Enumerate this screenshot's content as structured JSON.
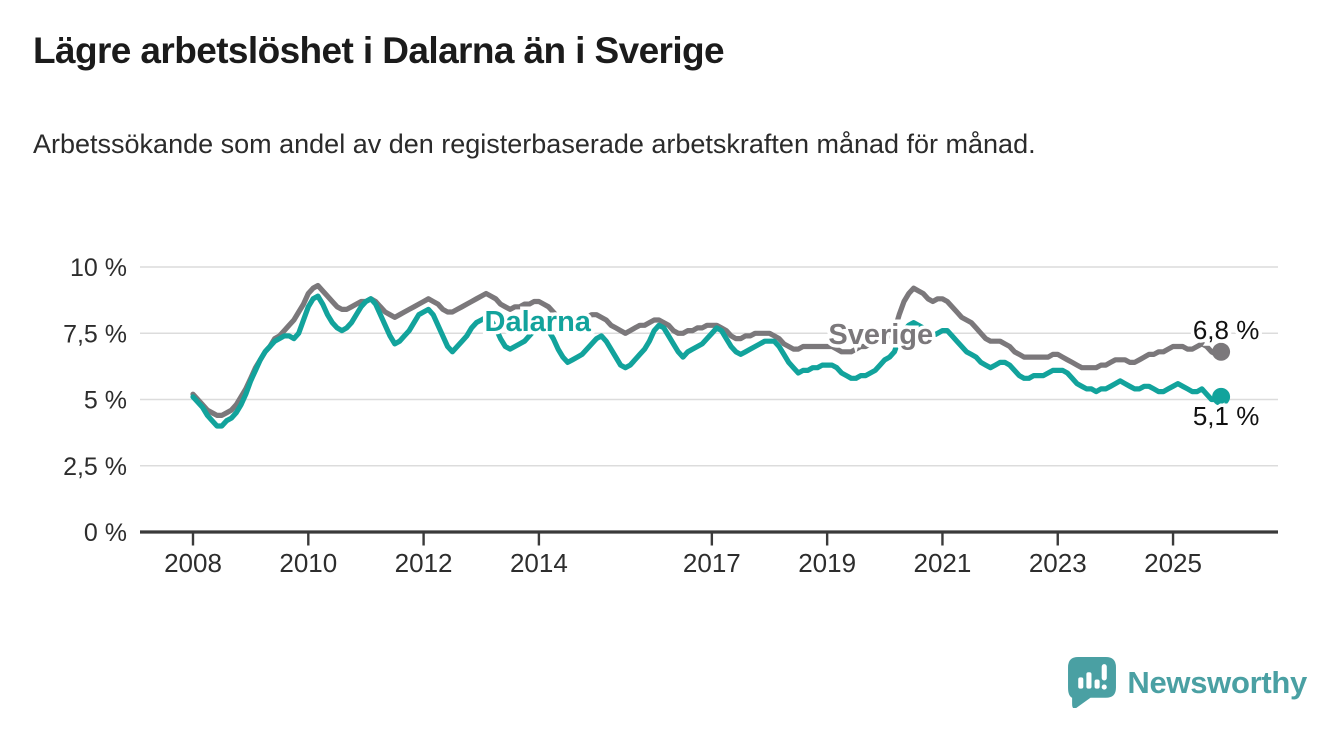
{
  "header": {
    "title": "Lägre arbetslöshet i Dalarna än i Sverige",
    "subtitle": "Arbetssökande som andel av den registerbaserade arbetskraften månad för månad."
  },
  "chart_data": {
    "type": "line",
    "title": "Lägre arbetslöshet i Dalarna än i Sverige",
    "subtitle": "Arbetssökande som andel av den registerbaserade arbetskraften månad för månad.",
    "unit": "%",
    "grid": true,
    "x_axis": {
      "frequency": "monthly",
      "start_year": 2008,
      "start_month": 1,
      "end_year": 2025,
      "end_month": 11,
      "tick_years": [
        2008,
        2010,
        2012,
        2014,
        2017,
        2019,
        2021,
        2023,
        2025
      ]
    },
    "y_axis": {
      "range": [
        0,
        10
      ],
      "ticks": [
        {
          "value": 0,
          "label": "0 %"
        },
        {
          "value": 2.5,
          "label": "2,5 %"
        },
        {
          "value": 5,
          "label": "5 %"
        },
        {
          "value": 7.5,
          "label": "7,5 %"
        },
        {
          "value": 10,
          "label": "10 %"
        }
      ]
    },
    "series": [
      {
        "name": "Sverige",
        "color": "#7b787b",
        "end_value": 6.8,
        "end_label": "6,8 %",
        "end_label_position": "above",
        "label_at": {
          "year": 2019.93,
          "value": 7.47
        },
        "values": [
          5.2,
          5.0,
          4.8,
          4.6,
          4.5,
          4.4,
          4.4,
          4.5,
          4.6,
          4.8,
          5.1,
          5.4,
          5.8,
          6.2,
          6.5,
          6.8,
          7.0,
          7.3,
          7.4,
          7.6,
          7.8,
          8.0,
          8.3,
          8.6,
          9.0,
          9.2,
          9.3,
          9.1,
          8.9,
          8.7,
          8.5,
          8.4,
          8.4,
          8.5,
          8.6,
          8.7,
          8.7,
          8.8,
          8.7,
          8.5,
          8.3,
          8.2,
          8.1,
          8.2,
          8.3,
          8.4,
          8.5,
          8.6,
          8.7,
          8.8,
          8.7,
          8.6,
          8.4,
          8.3,
          8.3,
          8.4,
          8.5,
          8.6,
          8.7,
          8.8,
          8.9,
          9.0,
          8.9,
          8.8,
          8.6,
          8.5,
          8.4,
          8.5,
          8.5,
          8.6,
          8.6,
          8.7,
          8.7,
          8.6,
          8.5,
          8.3,
          8.1,
          8.0,
          7.9,
          8.0,
          8.0,
          8.1,
          8.1,
          8.2,
          8.2,
          8.1,
          8.0,
          7.8,
          7.7,
          7.6,
          7.5,
          7.6,
          7.7,
          7.8,
          7.8,
          7.9,
          8.0,
          8.0,
          7.9,
          7.8,
          7.6,
          7.5,
          7.5,
          7.6,
          7.6,
          7.7,
          7.7,
          7.8,
          7.8,
          7.8,
          7.7,
          7.6,
          7.4,
          7.3,
          7.3,
          7.4,
          7.4,
          7.5,
          7.5,
          7.5,
          7.5,
          7.4,
          7.3,
          7.1,
          7.0,
          6.9,
          6.9,
          7.0,
          7.0,
          7.0,
          7.0,
          7.0,
          7.0,
          7.0,
          6.9,
          6.8,
          6.8,
          6.8,
          6.9,
          7.0,
          7.0,
          7.1,
          7.1,
          7.2,
          7.4,
          7.4,
          7.6,
          8.2,
          8.7,
          9.0,
          9.2,
          9.1,
          9.0,
          8.8,
          8.7,
          8.8,
          8.8,
          8.7,
          8.5,
          8.3,
          8.1,
          8.0,
          7.9,
          7.7,
          7.5,
          7.3,
          7.2,
          7.2,
          7.2,
          7.1,
          7.0,
          6.8,
          6.7,
          6.6,
          6.6,
          6.6,
          6.6,
          6.6,
          6.6,
          6.7,
          6.7,
          6.6,
          6.5,
          6.4,
          6.3,
          6.2,
          6.2,
          6.2,
          6.2,
          6.3,
          6.3,
          6.4,
          6.5,
          6.5,
          6.5,
          6.4,
          6.4,
          6.5,
          6.6,
          6.7,
          6.7,
          6.8,
          6.8,
          6.9,
          7.0,
          7.0,
          7.0,
          6.9,
          6.9,
          7.0,
          7.1,
          7.0,
          6.8,
          6.7,
          6.8
        ]
      },
      {
        "name": "Dalarna",
        "color": "#12a39c",
        "end_value": 5.1,
        "end_label": "5,1 %",
        "end_label_position": "below",
        "label_at": {
          "year": 2013.98,
          "value": 7.96
        },
        "values": [
          5.1,
          4.9,
          4.7,
          4.4,
          4.2,
          4.0,
          4.0,
          4.2,
          4.3,
          4.5,
          4.8,
          5.2,
          5.7,
          6.1,
          6.5,
          6.8,
          7.0,
          7.2,
          7.3,
          7.4,
          7.4,
          7.3,
          7.5,
          8.0,
          8.5,
          8.8,
          8.9,
          8.6,
          8.2,
          7.9,
          7.7,
          7.6,
          7.7,
          7.9,
          8.2,
          8.5,
          8.7,
          8.8,
          8.6,
          8.2,
          7.8,
          7.4,
          7.1,
          7.2,
          7.4,
          7.6,
          7.9,
          8.2,
          8.3,
          8.4,
          8.2,
          7.8,
          7.4,
          7.0,
          6.8,
          7.0,
          7.2,
          7.4,
          7.7,
          7.9,
          8.0,
          8.1,
          8.0,
          7.7,
          7.3,
          7.0,
          6.9,
          7.0,
          7.1,
          7.2,
          7.4,
          7.6,
          7.7,
          7.8,
          7.6,
          7.3,
          6.9,
          6.6,
          6.4,
          6.5,
          6.6,
          6.7,
          6.9,
          7.1,
          7.3,
          7.4,
          7.2,
          6.9,
          6.6,
          6.3,
          6.2,
          6.3,
          6.5,
          6.7,
          6.9,
          7.2,
          7.6,
          7.8,
          7.7,
          7.4,
          7.1,
          6.8,
          6.6,
          6.8,
          6.9,
          7.0,
          7.1,
          7.3,
          7.5,
          7.7,
          7.6,
          7.3,
          7.0,
          6.8,
          6.7,
          6.8,
          6.9,
          7.0,
          7.1,
          7.2,
          7.2,
          7.2,
          7.0,
          6.7,
          6.4,
          6.2,
          6.0,
          6.1,
          6.1,
          6.2,
          6.2,
          6.3,
          6.3,
          6.3,
          6.2,
          6.0,
          5.9,
          5.8,
          5.8,
          5.9,
          5.9,
          6.0,
          6.1,
          6.3,
          6.5,
          6.6,
          6.8,
          7.3,
          7.6,
          7.8,
          7.9,
          7.8,
          7.7,
          7.5,
          7.4,
          7.5,
          7.6,
          7.6,
          7.4,
          7.2,
          7.0,
          6.8,
          6.7,
          6.6,
          6.4,
          6.3,
          6.2,
          6.3,
          6.4,
          6.4,
          6.3,
          6.1,
          5.9,
          5.8,
          5.8,
          5.9,
          5.9,
          5.9,
          6.0,
          6.1,
          6.1,
          6.1,
          6.0,
          5.8,
          5.6,
          5.5,
          5.4,
          5.4,
          5.3,
          5.4,
          5.4,
          5.5,
          5.6,
          5.7,
          5.6,
          5.5,
          5.4,
          5.4,
          5.5,
          5.5,
          5.4,
          5.3,
          5.3,
          5.4,
          5.5,
          5.6,
          5.5,
          5.4,
          5.3,
          5.3,
          5.4,
          5.2,
          5.0,
          5.0,
          5.1
        ]
      }
    ],
    "style": {
      "grid_color": "#dcdcdc",
      "axis_color": "#3a3a3a",
      "tick_text_color": "#2d2d2d",
      "end_label_color": "#111111"
    }
  },
  "footer": {
    "brand": "Newsworthy",
    "brand_color": "#4aa0a3",
    "logo_icon": "newsworthy-speech-bubble-bar-chart"
  }
}
